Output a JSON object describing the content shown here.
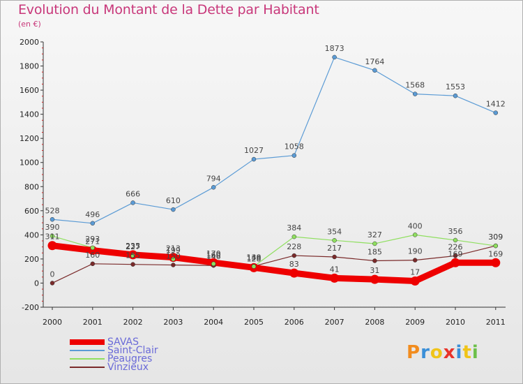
{
  "title": "Evolution du Montant de la Dette par Habitant",
  "subtitle": "(en €)",
  "logo": {
    "text": "Proxiti",
    "colors": [
      "#f28c1e",
      "#3a8fd8",
      "#f0c419",
      "#e8332a",
      "#3a8fd8",
      "#f0c419",
      "#6cc04a"
    ]
  },
  "chart_data": {
    "type": "line",
    "title": "Evolution du Montant de la Dette par Habitant",
    "ylabel": "(en €)",
    "xlabel": "",
    "x": [
      "2000",
      "2001",
      "2002",
      "2003",
      "2004",
      "2005",
      "2006",
      "2007",
      "2008",
      "2009",
      "2010",
      "2011"
    ],
    "ylim": [
      -200,
      2000
    ],
    "yticks": [
      "-200",
      "0",
      "200",
      "400",
      "600",
      "800",
      "1000",
      "1200",
      "1400",
      "1600",
      "1800",
      "2000"
    ],
    "grid": false,
    "legend": "bottom-left",
    "series": [
      {
        "name": "SAVAS",
        "color": "#ee0000",
        "values": [
          311,
          271,
          235,
          213,
          170,
          128,
          83,
          41,
          31,
          17,
          169,
          169
        ],
        "labels": [
          "311",
          "271",
          "235",
          "213",
          "170",
          "128",
          "83",
          "41",
          "31",
          "17",
          "169",
          "169"
        ]
      },
      {
        "name": "Saint-Clair",
        "color": "#5b9bd5",
        "values": [
          528,
          496,
          666,
          610,
          794,
          1027,
          1058,
          1873,
          1764,
          1568,
          1553,
          1412
        ],
        "labels": [
          "528",
          "496",
          "666",
          "610",
          "794",
          "1027",
          "1058",
          "1873",
          "1764",
          "1568",
          "1553",
          "1412"
        ]
      },
      {
        "name": "Peaugres",
        "color": "#8fdf5f",
        "values": [
          390,
          293,
          227,
          199,
          160,
          138,
          384,
          354,
          327,
          400,
          356,
          309
        ],
        "labels": [
          "390",
          "293",
          "227",
          "199",
          "160",
          "138",
          "384",
          "354",
          "327",
          "400",
          "356",
          "309"
        ]
      },
      {
        "name": "Vinzieux",
        "color": "#7a2a2a",
        "values": [
          0,
          160,
          155,
          150,
          146,
          140,
          228,
          217,
          185,
          190,
          226,
          309
        ],
        "labels": [
          "0",
          "160",
          "155",
          "150",
          "146",
          "140",
          "228",
          "217",
          "185",
          "190",
          "226",
          "309"
        ]
      }
    ]
  }
}
